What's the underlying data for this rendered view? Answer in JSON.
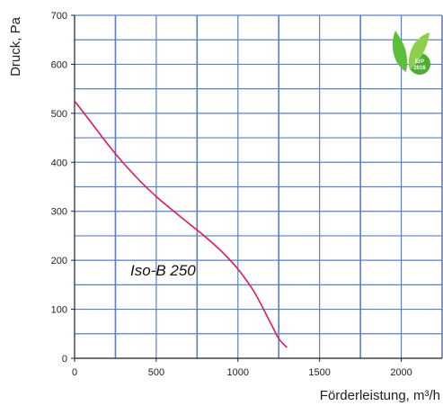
{
  "chart_data": {
    "type": "line",
    "title": "",
    "xlabel": "Förderleistung, m³/h",
    "ylabel": "Druck, Pa",
    "xlim": [
      0,
      2250
    ],
    "ylim": [
      0,
      700
    ],
    "x_ticks": [
      0,
      500,
      1000,
      1500,
      2000
    ],
    "y_ticks": [
      0,
      100,
      200,
      300,
      400,
      500,
      600,
      700
    ],
    "grid": true,
    "grid_color": "#5b7fc4",
    "axis_color": "#222222",
    "series": [
      {
        "name": "Iso-B 250",
        "color": "#e0195a",
        "x": [
          0,
          100,
          200,
          300,
          400,
          500,
          600,
          700,
          800,
          900,
          1000,
          1100,
          1200,
          1250,
          1300
        ],
        "y": [
          525,
          482,
          438,
          398,
          362,
          330,
          302,
          275,
          248,
          218,
          182,
          135,
          72,
          40,
          22
        ]
      }
    ]
  },
  "badge": {
    "text": "ErP",
    "year": "2016",
    "color": "#4caf32"
  }
}
